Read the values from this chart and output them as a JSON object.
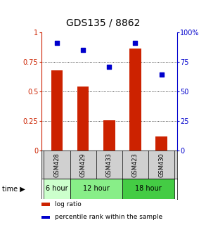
{
  "title": "GDS135 / 8862",
  "samples": [
    "GSM428",
    "GSM429",
    "GSM433",
    "GSM423",
    "GSM430"
  ],
  "log_ratios": [
    0.68,
    0.54,
    0.26,
    0.86,
    0.12
  ],
  "percentile_ranks": [
    91,
    85,
    71,
    91,
    64
  ],
  "bar_color": "#cc2200",
  "dot_color": "#0000cc",
  "ylim_left": [
    0,
    1.0
  ],
  "ylim_right": [
    0,
    100
  ],
  "yticks_left": [
    0,
    0.25,
    0.5,
    0.75,
    1.0
  ],
  "ytick_labels_left": [
    "0",
    "0.25",
    "0.5",
    "0.75",
    "1"
  ],
  "yticks_right": [
    0,
    25,
    50,
    75,
    100
  ],
  "ytick_labels_right": [
    "0",
    "25",
    "50",
    "75",
    "100%"
  ],
  "time_groups": [
    {
      "label": "6 hour",
      "indices": [
        0
      ],
      "color": "#ccffcc"
    },
    {
      "label": "12 hour",
      "indices": [
        1,
        2
      ],
      "color": "#88ee88"
    },
    {
      "label": "18 hour",
      "indices": [
        3,
        4
      ],
      "color": "#44cc44"
    }
  ],
  "legend_items": [
    {
      "label": "log ratio",
      "color": "#cc2200"
    },
    {
      "label": "percentile rank within the sample",
      "color": "#0000cc"
    }
  ],
  "bar_width": 0.45,
  "sample_bg_color": "#d0d0d0",
  "title_fontsize": 10,
  "tick_fontsize": 7,
  "sample_fontsize": 6,
  "time_fontsize": 7,
  "legend_fontsize": 6.5
}
